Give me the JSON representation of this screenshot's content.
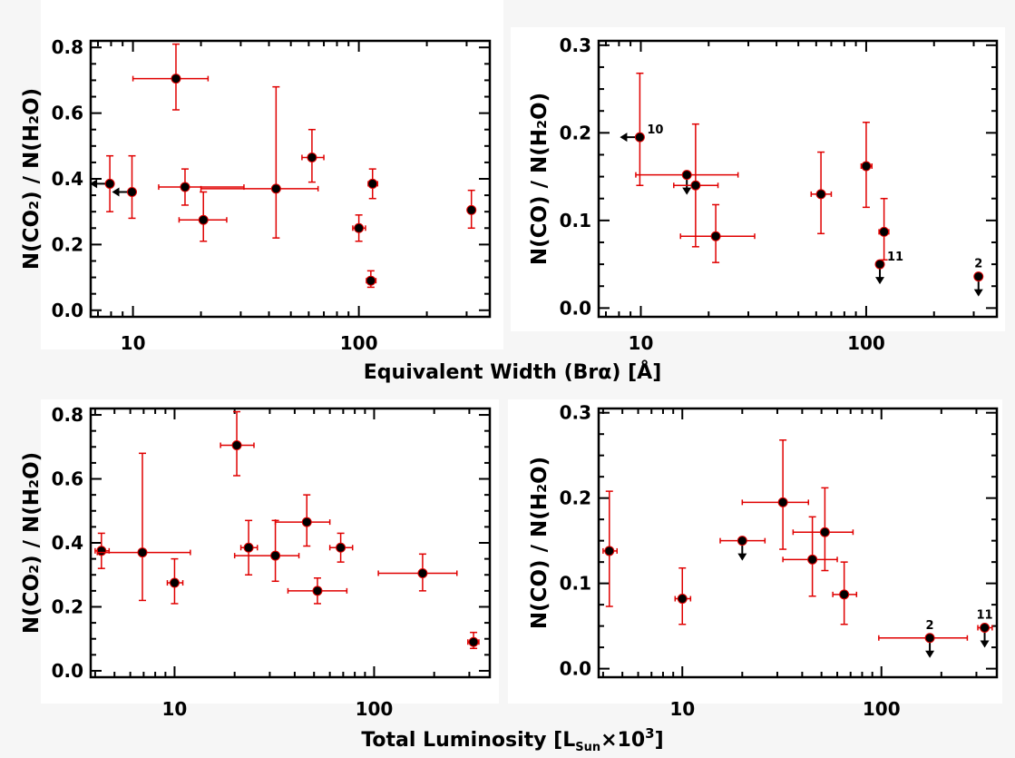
{
  "figure": {
    "xlabel_top": "Equivalent Width (Brα) [Å]",
    "xlabel_bottom_prefix": "Total Luminosity [L",
    "xlabel_bottom_sub": "Sun",
    "xlabel_bottom_mid": "×10",
    "xlabel_bottom_sup": "3",
    "xlabel_bottom_suffix": "]",
    "colors": {
      "errorbar": "#e00000",
      "marker": "#000000",
      "frame": "#000000",
      "background": "#ffffff"
    }
  },
  "chart_data": [
    {
      "type": "scatter",
      "panel": "top-left",
      "xlabel": "Equivalent Width (Brα) [Å]",
      "ylabel": "N(CO₂) / N(H₂O)",
      "xscale": "log",
      "xlim": [
        6.5,
        380
      ],
      "ylim": [
        -0.02,
        0.82
      ],
      "xticks": [
        10,
        100
      ],
      "xtick_labels": [
        "10",
        "100"
      ],
      "yticks": [
        0.0,
        0.2,
        0.4,
        0.6,
        0.8
      ],
      "ytick_labels": [
        "0.0",
        "0.2",
        "0.4",
        "0.6",
        "0.8"
      ],
      "points": [
        {
          "x": 7.9,
          "y": 0.385,
          "ylo": 0.3,
          "yhi": 0.47,
          "upper_limit_x": true
        },
        {
          "x": 9.9,
          "y": 0.36,
          "ylo": 0.28,
          "yhi": 0.47,
          "upper_limit_x": true
        },
        {
          "x": 15.5,
          "y": 0.705,
          "xlo": 10.0,
          "xhi": 21.5,
          "ylo": 0.61,
          "yhi": 0.81
        },
        {
          "x": 17.0,
          "y": 0.375,
          "xlo": 13.0,
          "xhi": 31.0,
          "ylo": 0.32,
          "yhi": 0.43
        },
        {
          "x": 20.5,
          "y": 0.275,
          "xlo": 16.0,
          "xhi": 26.0,
          "ylo": 0.21,
          "yhi": 0.36
        },
        {
          "x": 43.0,
          "y": 0.37,
          "xlo": 20.0,
          "xhi": 66.0,
          "ylo": 0.22,
          "yhi": 0.68
        },
        {
          "x": 62.0,
          "y": 0.465,
          "xlo": 56.0,
          "xhi": 70.0,
          "ylo": 0.39,
          "yhi": 0.55
        },
        {
          "x": 100.0,
          "y": 0.25,
          "xlo": 94.0,
          "xhi": 107.0,
          "ylo": 0.21,
          "yhi": 0.29
        },
        {
          "x": 113.0,
          "y": 0.09,
          "xlo": 108.0,
          "xhi": 119.0,
          "ylo": 0.07,
          "yhi": 0.12
        },
        {
          "x": 115.0,
          "y": 0.385,
          "xlo": 110.0,
          "xhi": 121.0,
          "ylo": 0.34,
          "yhi": 0.43
        },
        {
          "x": 315.0,
          "y": 0.305,
          "ylo": 0.25,
          "yhi": 0.365
        }
      ]
    },
    {
      "type": "scatter",
      "panel": "top-right",
      "xlabel": "Equivalent Width (Brα) [Å]",
      "ylabel": "N(CO) / N(H₂O)",
      "xscale": "log",
      "xlim": [
        6.5,
        380
      ],
      "ylim": [
        -0.01,
        0.305
      ],
      "xticks": [
        10,
        100
      ],
      "xtick_labels": [
        "10",
        "100"
      ],
      "yticks": [
        0.0,
        0.1,
        0.2,
        0.3
      ],
      "ytick_labels": [
        "0.0",
        "0.1",
        "0.2",
        "0.3"
      ],
      "points": [
        {
          "x": 9.9,
          "y": 0.195,
          "ylo": 0.14,
          "yhi": 0.268,
          "upper_limit_x": true,
          "label": "10"
        },
        {
          "x": 16.0,
          "y": 0.152,
          "xlo": 9.5,
          "xhi": 27.0,
          "upper_limit_y": true
        },
        {
          "x": 17.5,
          "y": 0.14,
          "xlo": 14.0,
          "xhi": 22.0,
          "ylo": 0.07,
          "yhi": 0.21
        },
        {
          "x": 21.5,
          "y": 0.082,
          "xlo": 15.0,
          "xhi": 32.0,
          "ylo": 0.052,
          "yhi": 0.118
        },
        {
          "x": 63.0,
          "y": 0.13,
          "xlo": 57.0,
          "xhi": 70.0,
          "ylo": 0.085,
          "yhi": 0.178
        },
        {
          "x": 100.0,
          "y": 0.162,
          "xlo": 95.0,
          "xhi": 106.0,
          "ylo": 0.115,
          "yhi": 0.212
        },
        {
          "x": 115.0,
          "y": 0.05,
          "upper_limit_y": true,
          "label": "11"
        },
        {
          "x": 120.0,
          "y": 0.087,
          "xlo": 114.0,
          "xhi": 126.0,
          "ylo": 0.055,
          "yhi": 0.125
        },
        {
          "x": 315.0,
          "y": 0.036,
          "upper_limit_y": true,
          "label": "2"
        }
      ]
    },
    {
      "type": "scatter",
      "panel": "bottom-left",
      "xlabel": "Total Luminosity [L_Sun×10^3]",
      "ylabel": "N(CO₂) / N(H₂O)",
      "xscale": "log",
      "xlim": [
        3.8,
        380
      ],
      "ylim": [
        -0.02,
        0.82
      ],
      "xticks": [
        10,
        100
      ],
      "xtick_labels": [
        "10",
        "100"
      ],
      "yticks": [
        0.0,
        0.2,
        0.4,
        0.6,
        0.8
      ],
      "ytick_labels": [
        "0.0",
        "0.2",
        "0.4",
        "0.6",
        "0.8"
      ],
      "points": [
        {
          "x": 4.3,
          "y": 0.375,
          "xlo": 4.0,
          "xhi": 4.7,
          "ylo": 0.32,
          "yhi": 0.43
        },
        {
          "x": 6.9,
          "y": 0.37,
          "xlo": 4.1,
          "xhi": 12.0,
          "ylo": 0.22,
          "yhi": 0.68
        },
        {
          "x": 10.0,
          "y": 0.275,
          "xlo": 9.2,
          "xhi": 11.0,
          "ylo": 0.21,
          "yhi": 0.35
        },
        {
          "x": 20.5,
          "y": 0.705,
          "xlo": 17.0,
          "xhi": 25.0,
          "ylo": 0.61,
          "yhi": 0.81
        },
        {
          "x": 23.5,
          "y": 0.385,
          "xlo": 21.5,
          "xhi": 26.0,
          "ylo": 0.3,
          "yhi": 0.47
        },
        {
          "x": 32.0,
          "y": 0.36,
          "xlo": 20.0,
          "xhi": 42.0,
          "ylo": 0.28,
          "yhi": 0.47
        },
        {
          "x": 46.0,
          "y": 0.465,
          "xlo": 32.0,
          "xhi": 60.0,
          "ylo": 0.39,
          "yhi": 0.55
        },
        {
          "x": 52.0,
          "y": 0.25,
          "xlo": 37.0,
          "xhi": 73.0,
          "ylo": 0.21,
          "yhi": 0.29
        },
        {
          "x": 68.0,
          "y": 0.385,
          "xlo": 60.0,
          "xhi": 78.0,
          "ylo": 0.34,
          "yhi": 0.43
        },
        {
          "x": 175.0,
          "y": 0.305,
          "xlo": 105.0,
          "xhi": 260.0,
          "ylo": 0.25,
          "yhi": 0.365
        },
        {
          "x": 315.0,
          "y": 0.09,
          "xlo": 295.0,
          "xhi": 335.0,
          "ylo": 0.07,
          "yhi": 0.12
        }
      ]
    },
    {
      "type": "scatter",
      "panel": "bottom-right",
      "xlabel": "Total Luminosity [L_Sun×10^3]",
      "ylabel": "N(CO) / N(H₂O)",
      "xscale": "log",
      "xlim": [
        3.8,
        380
      ],
      "ylim": [
        -0.01,
        0.305
      ],
      "xticks": [
        10,
        100
      ],
      "xtick_labels": [
        "10",
        "100"
      ],
      "yticks": [
        0.0,
        0.1,
        0.2,
        0.3
      ],
      "ytick_labels": [
        "0.0",
        "0.1",
        "0.2",
        "0.3"
      ],
      "points": [
        {
          "x": 4.3,
          "y": 0.138,
          "xlo": 4.0,
          "xhi": 4.7,
          "ylo": 0.073,
          "yhi": 0.208
        },
        {
          "x": 10.0,
          "y": 0.082,
          "xlo": 9.2,
          "xhi": 11.0,
          "ylo": 0.052,
          "yhi": 0.118
        },
        {
          "x": 20.0,
          "y": 0.15,
          "xlo": 15.5,
          "xhi": 26.0,
          "upper_limit_y": true
        },
        {
          "x": 32.0,
          "y": 0.195,
          "xlo": 20.0,
          "xhi": 43.0,
          "ylo": 0.14,
          "yhi": 0.268
        },
        {
          "x": 45.0,
          "y": 0.128,
          "xlo": 32.0,
          "xhi": 60.0,
          "ylo": 0.085,
          "yhi": 0.178
        },
        {
          "x": 52.0,
          "y": 0.16,
          "xlo": 36.0,
          "xhi": 72.0,
          "ylo": 0.115,
          "yhi": 0.212
        },
        {
          "x": 65.0,
          "y": 0.087,
          "xlo": 57.0,
          "xhi": 75.0,
          "ylo": 0.052,
          "yhi": 0.125
        },
        {
          "x": 175.0,
          "y": 0.036,
          "xlo": 97.0,
          "xhi": 270.0,
          "upper_limit_y": true,
          "label": "2"
        },
        {
          "x": 330.0,
          "y": 0.048,
          "xlo": 305.0,
          "xhi": 360.0,
          "upper_limit_y": true,
          "label": "11"
        }
      ]
    }
  ]
}
